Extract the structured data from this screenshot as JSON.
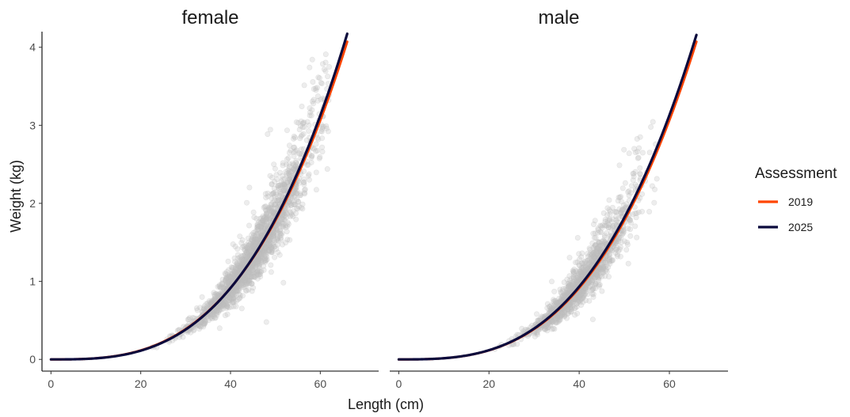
{
  "chart_data": {
    "type": "scatter",
    "title": "",
    "xlabel": "Length (cm)",
    "ylabel": "Weight (kg)",
    "xlim": [
      -2,
      73
    ],
    "ylim": [
      -0.15,
      4.2
    ],
    "xticks": [
      0,
      20,
      40,
      60
    ],
    "yticks": [
      0,
      1,
      2,
      3,
      4
    ],
    "grid": false,
    "legend": {
      "title": "Assessment",
      "position": "right"
    },
    "panels": [
      {
        "name": "female",
        "points_summary": {
          "description_color": "#bebebe",
          "length_range": [
            20,
            62
          ],
          "weight_range": [
            0,
            3.5
          ]
        },
        "series": [
          {
            "name": "2019",
            "color": "#ff4500",
            "a": 1.54e-05,
            "b": 2.98,
            "x_range": [
              0,
              66
            ]
          },
          {
            "name": "2025",
            "color": "#0b0a3c",
            "a": 1.28e-05,
            "b": 3.03,
            "x_range": [
              0,
              66
            ]
          }
        ]
      },
      {
        "name": "male",
        "points_summary": {
          "description_color": "#bebebe",
          "length_range": [
            20,
            58
          ],
          "weight_range": [
            0,
            2.9
          ]
        },
        "series": [
          {
            "name": "2019",
            "color": "#ff4500",
            "a": 1.54e-05,
            "b": 2.98,
            "x_range": [
              0,
              66
            ]
          },
          {
            "name": "2025",
            "color": "#0b0a3c",
            "a": 1.54e-05,
            "b": 2.985,
            "x_range": [
              0,
              66
            ]
          }
        ]
      }
    ]
  }
}
